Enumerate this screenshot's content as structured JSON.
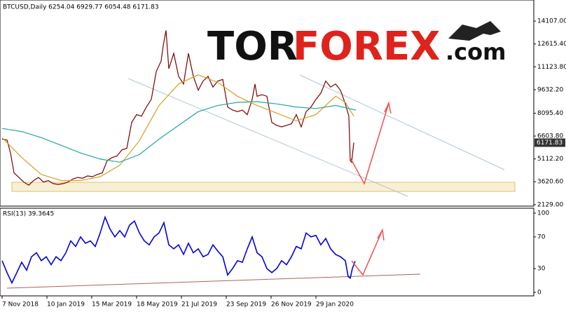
{
  "chart_data": [
    {
      "type": "line",
      "title": "BTCUSD,Daily  6254.04 6929.77 6054.48 6171.83",
      "xlim": [
        -3,
        759
      ],
      "ylim": [
        2030,
        15300
      ],
      "yticks": [
        {
          "value": 14107,
          "label": "14107.00"
        },
        {
          "value": 12615.4,
          "label": "12615.40"
        },
        {
          "value": 11123.8,
          "label": "11123.80"
        },
        {
          "value": 9632.2,
          "label": "9632.20"
        },
        {
          "value": 8095.4,
          "label": "8095.40"
        },
        {
          "value": 6603.8,
          "label": "6603.80"
        },
        {
          "value": 5112.2,
          "label": "5112.20"
        },
        {
          "value": 3620.6,
          "label": "3620.60"
        },
        {
          "value": 2129,
          "label": "2129.00"
        }
      ],
      "last_price": 6171.83,
      "series": [
        {
          "color": "#7a0000",
          "x": [
            0,
            7,
            12,
            17,
            24,
            31,
            38,
            45,
            52,
            59,
            66,
            73,
            80,
            87,
            94,
            101,
            108,
            115,
            122,
            129,
            136,
            143,
            150,
            157,
            164,
            171,
            178,
            185,
            192,
            199,
            206,
            213,
            220,
            227,
            230,
            234,
            238,
            245,
            252,
            259,
            266,
            273,
            280,
            287,
            294,
            301,
            308,
            315,
            322,
            329,
            336,
            343,
            350,
            357,
            361,
            364,
            371,
            378,
            385,
            392,
            399,
            406,
            413,
            420,
            427,
            434,
            441,
            448,
            455,
            462,
            469,
            476,
            483,
            490,
            495,
            497,
            499,
            502
          ],
          "values": [
            6400,
            6350,
            5500,
            4200,
            3900,
            3600,
            3400,
            3700,
            3900,
            3600,
            3700,
            3500,
            3450,
            3500,
            3600,
            3800,
            3900,
            3850,
            4000,
            3950,
            4100,
            4200,
            5000,
            5200,
            5300,
            5700,
            5800,
            7500,
            8000,
            7900,
            8500,
            9000,
            10800,
            11500,
            12500,
            13500,
            11000,
            12000,
            10500,
            10000,
            12000,
            10500,
            9600,
            10200,
            10500,
            9800,
            10200,
            10300,
            8500,
            8300,
            8200,
            8300,
            8000,
            9000,
            10000,
            9200,
            9300,
            9200,
            7500,
            7300,
            7200,
            7300,
            7400,
            8000,
            7200,
            8200,
            8500,
            9000,
            9400,
            10200,
            9800,
            10000,
            9600,
            8700,
            7900,
            5000,
            4900,
            6171.83
          ]
        },
        {
          "color": "#d4a020",
          "x": [
            0,
            28,
            56,
            84,
            112,
            140,
            168,
            196,
            224,
            252,
            280,
            308,
            336,
            364,
            392,
            420,
            448,
            476,
            490,
            502
          ],
          "values": [
            6500,
            5200,
            4100,
            3700,
            3700,
            3950,
            4700,
            6300,
            8600,
            10000,
            10600,
            10100,
            9200,
            8600,
            8100,
            7600,
            8000,
            9200,
            8800,
            7900
          ]
        },
        {
          "color": "#20a8a0",
          "x": [
            0,
            28,
            56,
            84,
            112,
            140,
            168,
            196,
            224,
            252,
            280,
            308,
            336,
            364,
            392,
            420,
            448,
            476,
            505
          ],
          "values": [
            7100,
            6900,
            6500,
            6000,
            5500,
            5100,
            4900,
            5400,
            6400,
            7300,
            8200,
            8600,
            8800,
            8850,
            8700,
            8500,
            8400,
            8600,
            8300
          ]
        }
      ]
    },
    {
      "type": "line",
      "title": "RSI(13) 39.3645",
      "xlim": [
        -3,
        759
      ],
      "ylim": [
        -4.4,
        106.2
      ],
      "yticks": [
        100,
        70,
        30,
        0
      ],
      "xticks": [
        {
          "value": 0,
          "label": "7 Nov 2018"
        },
        {
          "value": 64,
          "label": "10 Jan 2019"
        },
        {
          "value": 128,
          "label": "15 Mar 2019"
        },
        {
          "value": 192,
          "label": "18 May 2019"
        },
        {
          "value": 256,
          "label": "21 Jul 2019"
        },
        {
          "value": 320,
          "label": "23 Sep 2019"
        },
        {
          "value": 384,
          "label": "26 Nov 2019"
        },
        {
          "value": 448,
          "label": "29 Jan 2020"
        }
      ],
      "series": [
        {
          "color": "#0000e0",
          "x": [
            0,
            7,
            14,
            21,
            28,
            35,
            42,
            49,
            56,
            63,
            70,
            77,
            84,
            91,
            98,
            105,
            112,
            119,
            126,
            133,
            140,
            147,
            154,
            161,
            168,
            175,
            182,
            189,
            196,
            203,
            210,
            217,
            224,
            231,
            238,
            245,
            252,
            259,
            266,
            273,
            280,
            287,
            294,
            301,
            308,
            315,
            322,
            329,
            336,
            343,
            350,
            357,
            364,
            371,
            378,
            385,
            392,
            399,
            406,
            413,
            420,
            427,
            434,
            441,
            448,
            455,
            462,
            469,
            476,
            483,
            490,
            494,
            497,
            500,
            504
          ],
          "values": [
            40,
            25,
            12,
            25,
            38,
            28,
            45,
            50,
            40,
            45,
            35,
            45,
            40,
            50,
            65,
            58,
            70,
            62,
            65,
            58,
            75,
            95,
            80,
            70,
            78,
            70,
            85,
            90,
            75,
            65,
            60,
            70,
            75,
            88,
            60,
            55,
            60,
            48,
            62,
            50,
            55,
            45,
            48,
            60,
            52,
            45,
            22,
            30,
            40,
            38,
            55,
            70,
            50,
            45,
            30,
            25,
            30,
            40,
            35,
            45,
            58,
            55,
            75,
            70,
            72,
            60,
            68,
            55,
            48,
            45,
            40,
            20,
            18,
            30,
            39.36
          ]
        }
      ]
    }
  ],
  "watermark": {
    "tor": "TOR",
    "forex": "FOREX",
    "com": ".com"
  }
}
